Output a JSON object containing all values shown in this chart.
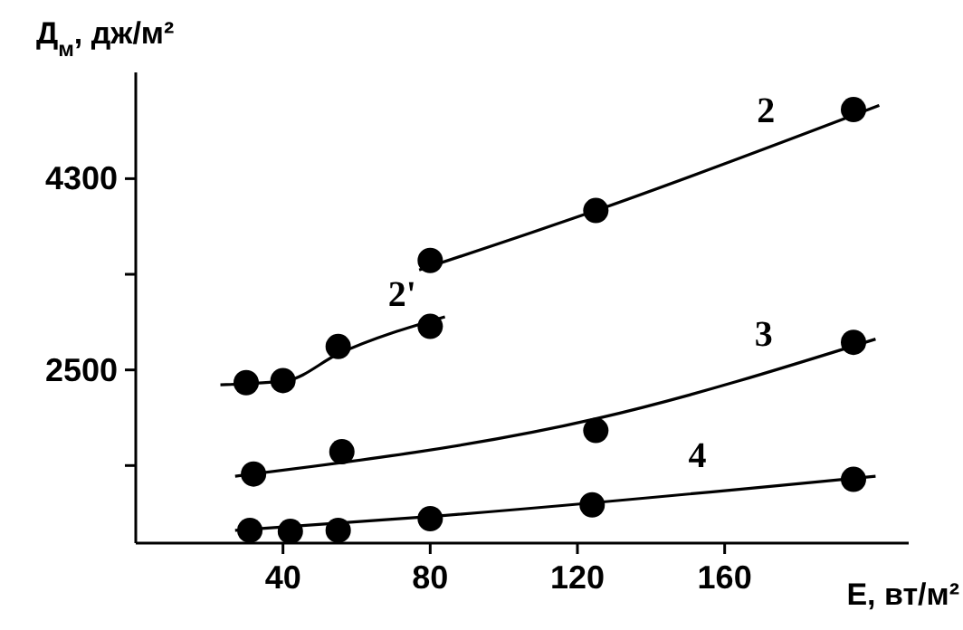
{
  "chart_data": {
    "type": "scatter",
    "xlabel": "E, вт/м²",
    "ylabel": "Д$_{м}$, дж/м²",
    "xlim": [
      0,
      210
    ],
    "ylim": [
      870,
      5300
    ],
    "xticks": [
      40,
      80,
      120,
      160
    ],
    "yticks": [
      {
        "value": 1600,
        "label": null
      },
      2500,
      {
        "value": 3400,
        "label": null
      },
      4300
    ],
    "grid": false,
    "series": [
      {
        "color": "#000000",
        "marker": "circle",
        "x": [
          80,
          125,
          195
        ],
        "values": [
          3530,
          4000,
          4950
        ]
      },
      {
        "type": "line",
        "name": "2",
        "marker": "none",
        "color": "#000000",
        "x": [
          77,
          125,
          202
        ],
        "values": [
          3440,
          4000,
          4990
        ]
      },
      {
        "color": "#000000",
        "marker": "circle",
        "x": [
          30,
          40,
          55,
          80
        ],
        "values": [
          2380,
          2400,
          2720,
          2910
        ]
      },
      {
        "type": "line",
        "name": "2'",
        "marker": "none",
        "color": "#000000",
        "x": [
          23,
          41,
          55,
          84
        ],
        "values": [
          2360,
          2400,
          2650,
          3000
        ]
      },
      {
        "color": "#000000",
        "marker": "circle",
        "x": [
          32,
          56,
          125,
          195
        ],
        "values": [
          1520,
          1730,
          1930,
          2760
        ]
      },
      {
        "type": "line",
        "name": "3",
        "marker": "none",
        "color": "#000000",
        "x": [
          27,
          125,
          201
        ],
        "values": [
          1500,
          2040,
          2790
        ]
      },
      {
        "color": "#000000",
        "marker": "circle",
        "x": [
          31,
          42,
          55,
          80,
          124,
          195
        ],
        "values": [
          990,
          980,
          990,
          1100,
          1230,
          1470
        ]
      },
      {
        "type": "line",
        "name": "4",
        "marker": "none",
        "color": "#000000",
        "x": [
          27,
          80,
          201
        ],
        "values": [
          990,
          1120,
          1500
        ]
      }
    ]
  }
}
